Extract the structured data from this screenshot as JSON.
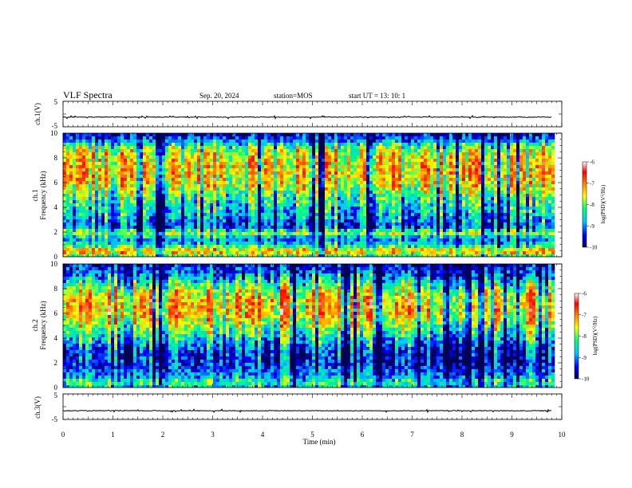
{
  "header": {
    "title": "VLF Spectra",
    "date": "Sep. 20, 2024",
    "station": "station=MOS",
    "start": "start  UT  =   13: 10: 1"
  },
  "colors": {
    "frame": "#000000",
    "background": "#ffffff",
    "colormap": [
      "#000050",
      "#0000ff",
      "#00c8ff",
      "#00ff80",
      "#ffff00",
      "#ff8000",
      "#ff0000",
      "#ffffff"
    ]
  },
  "chart_data": [
    {
      "type": "line",
      "panel": "ch.1 waveform",
      "ylabel": "ch.1(V)",
      "ylim": [
        -5,
        5
      ],
      "yticks": [
        "5",
        "-5"
      ],
      "xlim": [
        0,
        10
      ],
      "series": [
        {
          "level": -1.2
        }
      ]
    },
    {
      "type": "heatmap",
      "panel": "ch.1 spectrogram",
      "ylabel": "ch.1\nFrequency (kHz)",
      "ylim": [
        0,
        10
      ],
      "yticks": [
        "0",
        "2",
        "4",
        "6",
        "8",
        "10"
      ],
      "xlim": [
        0,
        9.8
      ],
      "colorbar": {
        "label": "log(PSD)(V²/Hz)",
        "range": [
          -10,
          -6
        ],
        "ticks": [
          "-6",
          "-7",
          "-8",
          "-9",
          "-10"
        ]
      },
      "profile": [
        {
          "f": 0,
          "v": -8.4
        },
        {
          "f": 0.5,
          "v": -7.2
        },
        {
          "f": 1,
          "v": -8.6
        },
        {
          "f": 1.5,
          "v": -9.0
        },
        {
          "f": 2,
          "v": -7.9
        },
        {
          "f": 2.5,
          "v": -9.3
        },
        {
          "f": 3,
          "v": -9.0
        },
        {
          "f": 4,
          "v": -8.6
        },
        {
          "f": 5,
          "v": -8.2
        },
        {
          "f": 6,
          "v": -7.6
        },
        {
          "f": 7,
          "v": -7.4
        },
        {
          "f": 8,
          "v": -7.6
        },
        {
          "f": 8.8,
          "v": -8.0
        },
        {
          "f": 9.5,
          "v": -9.2
        },
        {
          "f": 10,
          "v": -9.6
        }
      ]
    },
    {
      "type": "heatmap",
      "panel": "ch.2 spectrogram",
      "ylabel": "ch.2\nFrequency (kHz)",
      "ylim": [
        0,
        10
      ],
      "yticks": [
        "0",
        "2",
        "4",
        "6",
        "8",
        "10"
      ],
      "xlim": [
        0,
        9.8
      ],
      "colorbar": {
        "label": "log(PSD)(V²/Hz)",
        "range": [
          -10,
          -6
        ],
        "ticks": [
          "-6",
          "-7",
          "-8",
          "-9",
          "-10"
        ]
      },
      "profile": [
        {
          "f": 0,
          "v": -8.7
        },
        {
          "f": 0.5,
          "v": -8.3
        },
        {
          "f": 1,
          "v": -8.9
        },
        {
          "f": 2,
          "v": -9.4
        },
        {
          "f": 3,
          "v": -9.3
        },
        {
          "f": 4,
          "v": -8.6
        },
        {
          "f": 5,
          "v": -7.9
        },
        {
          "f": 6,
          "v": -7.3
        },
        {
          "f": 7,
          "v": -7.3
        },
        {
          "f": 8,
          "v": -7.9
        },
        {
          "f": 9,
          "v": -8.9
        },
        {
          "f": 10,
          "v": -9.6
        }
      ]
    },
    {
      "type": "line",
      "panel": "ch.3 waveform",
      "ylabel": "ch.3(V)",
      "ylim": [
        -5,
        5
      ],
      "yticks": [
        "5",
        "-5"
      ],
      "xlim": [
        0,
        10
      ],
      "series": [
        {
          "level": -1.6
        }
      ]
    }
  ],
  "xaxis": {
    "xlabel": "Time  (min)",
    "ticks": [
      "0",
      "1",
      "2",
      "3",
      "4",
      "5",
      "6",
      "7",
      "8",
      "9",
      "10"
    ],
    "range": [
      0,
      10
    ]
  }
}
